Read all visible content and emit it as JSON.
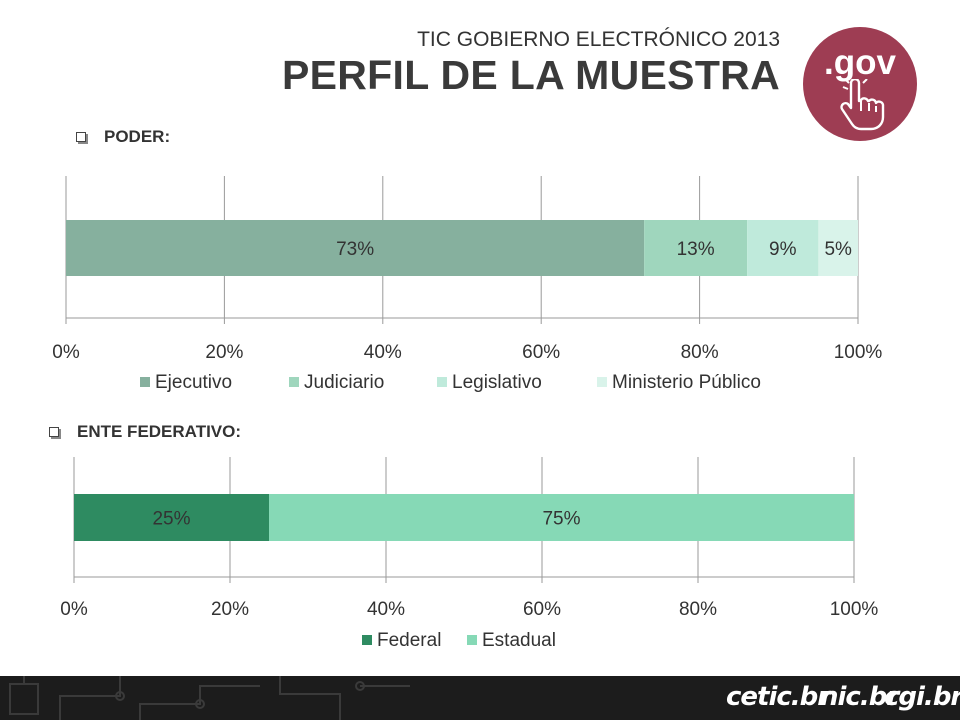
{
  "header": {
    "subtitle": "TIC GOBIERNO ELECTRÓNICO 2013",
    "title": "PERFIL DE LA MUESTRA",
    "badge_text": ".gov"
  },
  "sections": [
    {
      "label": "PODER:"
    },
    {
      "label": "ENTE FEDERATIVO:"
    }
  ],
  "chart_data": [
    {
      "type": "bar",
      "orientation": "horizontal-stacked-100",
      "xlim": [
        0,
        100
      ],
      "ticks": [
        "0%",
        "20%",
        "40%",
        "60%",
        "80%",
        "100%"
      ],
      "grid": true,
      "legend_position": "bottom",
      "series": [
        {
          "name": "Ejecutivo",
          "value": 73,
          "label": "73%",
          "color": "#86b09e"
        },
        {
          "name": "Judiciario",
          "value": 13,
          "label": "13%",
          "color": "#9fd6bd"
        },
        {
          "name": "Legislativo",
          "value": 9,
          "label": "9%",
          "color": "#bfeadb"
        },
        {
          "name": "Ministerio Público",
          "value": 5,
          "label": "5%",
          "color": "#d9f3ea"
        }
      ]
    },
    {
      "type": "bar",
      "orientation": "horizontal-stacked-100",
      "xlim": [
        0,
        100
      ],
      "ticks": [
        "0%",
        "20%",
        "40%",
        "60%",
        "80%",
        "100%"
      ],
      "grid": true,
      "legend_position": "bottom",
      "series": [
        {
          "name": "Federal",
          "value": 25,
          "label": "25%",
          "color": "#2e8b61"
        },
        {
          "name": "Estadual",
          "value": 75,
          "label": "75%",
          "color": "#86d9b6"
        }
      ]
    }
  ],
  "footer": {
    "logos": [
      "cetic.br",
      "nic.br",
      "cgi.br"
    ]
  }
}
